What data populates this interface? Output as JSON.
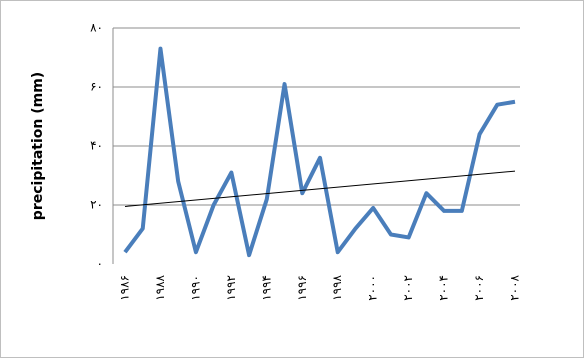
{
  "chart_data": {
    "type": "line",
    "y_label": "precipitation (mm)",
    "categories": [
      "۱۹۸۶",
      null,
      "۱۹۸۸",
      null,
      "۱۹۹۰",
      null,
      "۱۹۹۲",
      null,
      "۱۹۹۴",
      null,
      "۱۹۹۶",
      null,
      "۱۹۹۸",
      null,
      "۲۰۰۰",
      null,
      "۲۰۰۲",
      null,
      "۲۰۰۴",
      null,
      "۲۰۰۶",
      null,
      "۲۰۰۸"
    ],
    "values": [
      4,
      12,
      73,
      28,
      4,
      20,
      31,
      3,
      22,
      61,
      24,
      36,
      4,
      12,
      19,
      10,
      9,
      24,
      18,
      18,
      44,
      54,
      55
    ],
    "color": "#4a7ebb",
    "trendline": {
      "values": [
        19.5,
        31.5
      ],
      "color": "#000000"
    },
    "ylim": [
      0,
      80
    ],
    "yticks": [
      {
        "value": 0,
        "label": "۰"
      },
      {
        "value": 20,
        "label": "۲۰"
      },
      {
        "value": 40,
        "label": "۴۰"
      },
      {
        "value": 60,
        "label": "۶۰"
      },
      {
        "value": 80,
        "label": "۸۰"
      }
    ],
    "grid": true
  }
}
